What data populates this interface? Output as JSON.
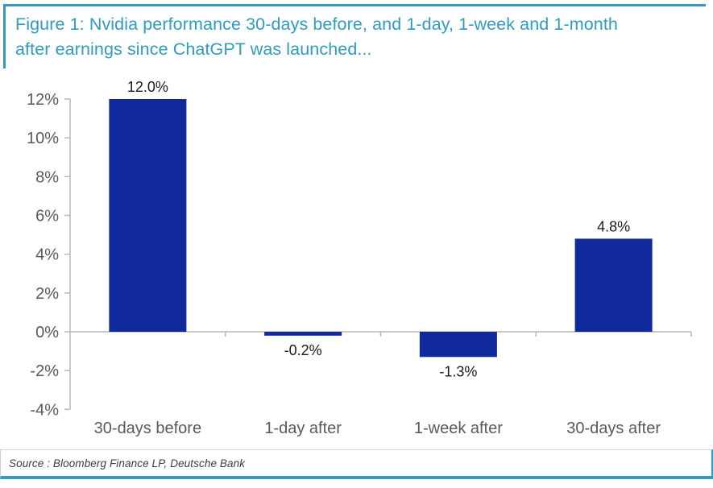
{
  "figure": {
    "title_lines": [
      "Figure 1: Nvidia performance 30-days before, and 1-day, 1-week and 1-month",
      "after earnings since ChatGPT was launched..."
    ]
  },
  "source": {
    "text": "Source : Bloomberg Finance LP, Deutsche Bank"
  },
  "colors": {
    "accent_teal": "#2f9cbd",
    "bar_navy": "#10299b",
    "axis_gray": "#b8b8b8",
    "tick_text_gray": "#595959",
    "data_label_dark": "#1a1a1a"
  },
  "chart_data": {
    "type": "bar",
    "categories": [
      "30-days before",
      "1-day after",
      "1-week after",
      "30-days after"
    ],
    "values": [
      12.0,
      -0.2,
      -1.3,
      4.8
    ],
    "data_labels": [
      "12.0%",
      "-0.2%",
      "-1.3%",
      "4.8%"
    ],
    "title": "Nvidia performance 30-days before, and 1-day, 1-week and 1-month after earnings since ChatGPT was launched",
    "xlabel": "",
    "ylabel": "",
    "ylim": [
      -4,
      12
    ],
    "ytick_step": 2,
    "ytick_labels": [
      "12%",
      "10%",
      "8%",
      "6%",
      "4%",
      "2%",
      "0%",
      "-2%",
      "-4%"
    ],
    "grid": false,
    "legend_position": "none"
  }
}
